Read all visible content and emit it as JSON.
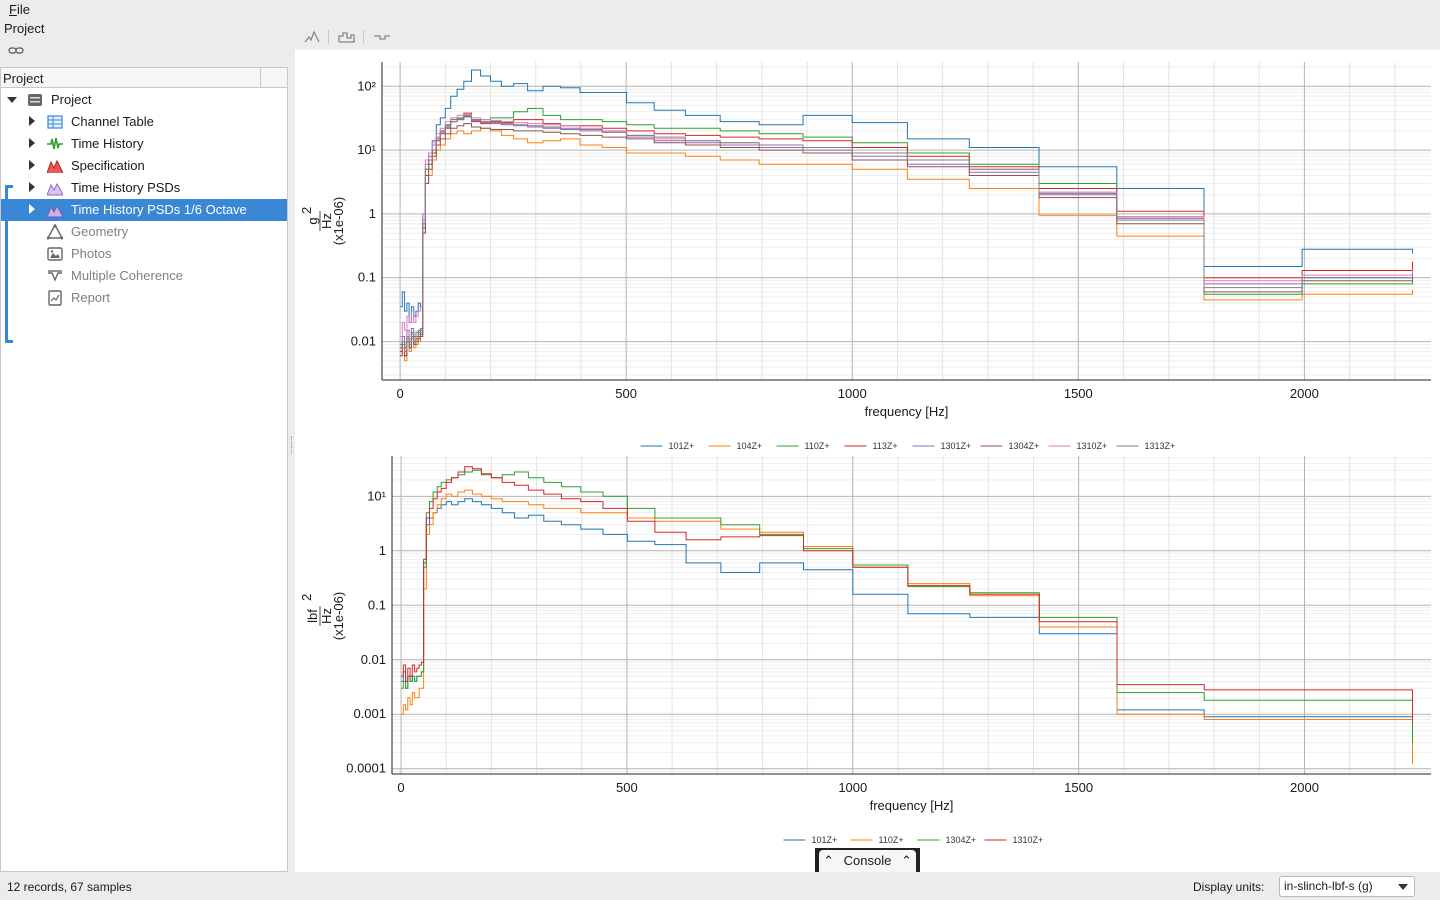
{
  "menubar": {
    "file_label": "File"
  },
  "project_panel": {
    "title": "Project",
    "tree_header": "Project",
    "items": [
      {
        "label": "Project",
        "icon": "database-icon",
        "expanded": true
      },
      {
        "label": "Channel Table",
        "icon": "table-icon"
      },
      {
        "label": "Time History",
        "icon": "waveform-icon"
      },
      {
        "label": "Specification",
        "icon": "spec-icon"
      },
      {
        "label": "Time History PSDs",
        "icon": "psd-icon"
      },
      {
        "label": "Time History PSDs 1/6 Octave",
        "icon": "psd-icon",
        "selected": true
      },
      {
        "label": "Geometry",
        "icon": "triangle-icon",
        "disabled": true
      },
      {
        "label": "Photos",
        "icon": "photo-icon",
        "disabled": true
      },
      {
        "label": "Multiple Coherence",
        "icon": "coherence-icon",
        "disabled": true
      },
      {
        "label": "Report",
        "icon": "report-icon",
        "disabled": true
      }
    ]
  },
  "toolbar": {
    "icons": [
      "peak-icon",
      "histogram-icon",
      "step-icon"
    ]
  },
  "colors": {
    "accent": "#3a87d6",
    "series": [
      "#1f77b4",
      "#ff7f0e",
      "#2ca02c",
      "#d62728",
      "#9467bd",
      "#8c564b",
      "#e377c2",
      "#7f7f7f"
    ]
  },
  "chart_data": [
    {
      "type": "line",
      "step": true,
      "xlabel": "frequency [Hz]",
      "ylabel_num": "g",
      "ylabel_sup": "2",
      "ylabel_den": "Hz",
      "ylabel_scale": "(x1e-06)",
      "yscale": "log",
      "xlim": [
        -40,
        2280
      ],
      "ylim": [
        0.0025,
        240
      ],
      "xticks": [
        0,
        500,
        1000,
        1500,
        2000
      ],
      "xtick_labels": [
        "0",
        "500",
        "1000",
        "1500",
        "2000"
      ],
      "yticks": [
        0.01,
        0.1,
        1,
        10,
        100
      ],
      "ytick_labels": [
        "0.01",
        "0.1",
        "1",
        "10¹",
        "10²"
      ],
      "grid": true,
      "legend_position": "bottom",
      "bin_edges": [
        0,
        5,
        10,
        15,
        20,
        25,
        30,
        35,
        40,
        45,
        50,
        56,
        63,
        71,
        80,
        89,
        100,
        112,
        126,
        141,
        158,
        178,
        200,
        224,
        251,
        282,
        316,
        355,
        398,
        447,
        501,
        562,
        631,
        708,
        794,
        891,
        1000,
        1122,
        1259,
        1413,
        1585,
        1778,
        1995,
        2239
      ],
      "series": [
        {
          "name": "101Z+",
          "values": [
            0.035,
            0.06,
            0.03,
            0.04,
            0.02,
            0.035,
            0.025,
            0.03,
            0.04,
            0.035,
            1.0,
            5,
            9,
            14,
            25,
            32,
            45,
            70,
            90,
            120,
            180,
            145,
            120,
            100,
            110,
            85,
            100,
            95,
            80,
            80,
            55,
            42,
            35,
            28,
            25,
            35,
            27,
            15,
            11,
            5.5,
            2.5,
            0.15,
            0.28,
            0.24
          ]
        },
        {
          "name": "104Z+",
          "values": [
            0.006,
            0.008,
            0.005,
            0.01,
            0.007,
            0.012,
            0.008,
            0.009,
            0.01,
            0.012,
            0.5,
            3,
            4,
            7,
            10,
            12,
            15,
            18,
            20,
            18,
            20,
            22,
            20,
            17,
            15,
            13,
            14,
            15,
            12,
            11,
            9,
            9,
            8,
            7,
            6,
            6,
            5,
            3.5,
            2.5,
            0.95,
            0.45,
            0.045,
            0.055,
            0.065
          ]
        },
        {
          "name": "110Z+",
          "values": [
            0.008,
            0.01,
            0.007,
            0.012,
            0.009,
            0.014,
            0.01,
            0.012,
            0.014,
            0.015,
            0.7,
            5,
            7,
            10,
            15,
            20,
            25,
            30,
            32,
            35,
            30,
            30,
            32,
            32,
            40,
            45,
            35,
            30,
            30,
            28,
            25,
            22,
            22,
            20,
            18,
            16,
            13,
            9,
            6,
            3,
            0.9,
            0.055,
            0.08,
            0.1
          ]
        },
        {
          "name": "113Z+",
          "values": [
            0.007,
            0.009,
            0.006,
            0.011,
            0.008,
            0.012,
            0.009,
            0.011,
            0.012,
            0.013,
            0.6,
            4,
            6,
            9,
            14,
            18,
            22,
            28,
            30,
            38,
            28,
            26,
            28,
            27,
            30,
            30,
            26,
            24,
            24,
            22,
            20,
            18,
            17,
            16,
            15,
            14,
            11,
            8,
            5.5,
            2.5,
            1.1,
            0.1,
            0.13,
            0.18
          ]
        },
        {
          "name": "1301Z+",
          "values": [
            0.009,
            0.012,
            0.008,
            0.015,
            0.01,
            0.016,
            0.012,
            0.014,
            0.015,
            0.016,
            0.8,
            6,
            8,
            12,
            16,
            20,
            24,
            28,
            30,
            33,
            29,
            27,
            26,
            25,
            24,
            23,
            22,
            21,
            20,
            19,
            16,
            14,
            13,
            12,
            11,
            10,
            8,
            6,
            4.5,
            2,
            0.85,
            0.08,
            0.1,
            0.12
          ]
        },
        {
          "name": "1304Z+",
          "values": [
            0.006,
            0.009,
            0.006,
            0.01,
            0.008,
            0.011,
            0.009,
            0.01,
            0.011,
            0.012,
            0.5,
            3,
            5,
            8,
            12,
            15,
            18,
            22,
            24,
            26,
            23,
            22,
            21,
            21,
            20,
            20,
            19,
            18,
            17,
            16,
            15,
            13,
            12,
            11,
            10,
            9,
            7,
            5.5,
            4,
            1.8,
            0.7,
            0.06,
            0.09,
            0.11
          ]
        },
        {
          "name": "1310Z+",
          "values": [
            0.012,
            0.02,
            0.015,
            0.025,
            0.02,
            0.03,
            0.02,
            0.025,
            0.03,
            0.035,
            1.0,
            7,
            9,
            13,
            18,
            22,
            28,
            32,
            35,
            36,
            32,
            30,
            29,
            28,
            27,
            26,
            25,
            24,
            22,
            20,
            17,
            15,
            14,
            13,
            12,
            11,
            9,
            7,
            5,
            2.2,
            0.9,
            0.09,
            0.11,
            0.13
          ]
        },
        {
          "name": "1313Z+",
          "values": [
            0.008,
            0.01,
            0.007,
            0.012,
            0.009,
            0.013,
            0.01,
            0.012,
            0.013,
            0.014,
            0.7,
            5,
            7,
            10,
            15,
            19,
            23,
            28,
            31,
            34,
            30,
            28,
            27,
            26,
            25,
            24,
            23,
            22,
            21,
            19,
            17,
            16,
            14,
            13,
            12,
            11,
            9,
            7,
            5,
            2.1,
            0.8,
            0.07,
            0.1,
            0.12
          ]
        }
      ]
    },
    {
      "type": "line",
      "step": true,
      "xlabel": "frequency [Hz]",
      "ylabel_num": "lbf",
      "ylabel_sup": "2",
      "ylabel_den": "Hz",
      "ylabel_scale": "(x1e-06)",
      "yscale": "log",
      "xlim": [
        -20,
        2280
      ],
      "ylim": [
        8e-05,
        55
      ],
      "xticks": [
        0,
        500,
        1000,
        1500,
        2000
      ],
      "xtick_labels": [
        "0",
        "500",
        "1000",
        "1500",
        "2000"
      ],
      "yticks": [
        0.0001,
        0.001,
        0.01,
        0.1,
        1,
        10
      ],
      "ytick_labels": [
        "0.0001",
        "0.001",
        "0.01",
        "0.1",
        "1",
        "10¹"
      ],
      "grid": true,
      "legend_position": "bottom",
      "bin_edges": [
        0,
        5,
        10,
        15,
        20,
        25,
        30,
        35,
        40,
        45,
        50,
        56,
        63,
        71,
        80,
        89,
        100,
        112,
        126,
        141,
        158,
        178,
        200,
        224,
        251,
        282,
        316,
        355,
        398,
        447,
        501,
        562,
        631,
        708,
        794,
        891,
        1000,
        1122,
        1259,
        1413,
        1585,
        1778,
        1995,
        2239
      ],
      "series": [
        {
          "name": "101Z+",
          "values": [
            0.004,
            0.006,
            0.003,
            0.005,
            0.004,
            0.005,
            0.004,
            0.005,
            0.005,
            0.006,
            0.6,
            3,
            4,
            5,
            6,
            7,
            8,
            7,
            8,
            9,
            8,
            7,
            6,
            5,
            4,
            4.5,
            3.5,
            3,
            2.5,
            2,
            1.5,
            1.3,
            0.6,
            0.4,
            0.6,
            0.45,
            0.16,
            0.07,
            0.06,
            0.03,
            0.0012,
            0.0009,
            0.0009,
            0.00015
          ]
        },
        {
          "name": "110Z+",
          "values": [
            0.001,
            0.0015,
            0.0012,
            0.002,
            0.0015,
            0.0025,
            0.002,
            0.002,
            0.003,
            0.003,
            0.2,
            2,
            3,
            5,
            7,
            9,
            11,
            10,
            12,
            13,
            11,
            10,
            9,
            8,
            8,
            7,
            6,
            6,
            5,
            5,
            4,
            3.5,
            3.5,
            2.5,
            2.2,
            1.2,
            0.5,
            0.25,
            0.15,
            0.04,
            0.001,
            0.0008,
            0.0008,
            0.00012
          ]
        },
        {
          "name": "1304Z+",
          "values": [
            0.003,
            0.004,
            0.003,
            0.005,
            0.004,
            0.005,
            0.004,
            0.005,
            0.005,
            0.006,
            0.5,
            5,
            8,
            12,
            15,
            18,
            20,
            22,
            25,
            28,
            30,
            25,
            22,
            25,
            28,
            22,
            18,
            15,
            12,
            10,
            6,
            4,
            4,
            3,
            2,
            1.1,
            0.55,
            0.22,
            0.17,
            0.06,
            0.0025,
            0.0018,
            0.0018,
            0.0003
          ]
        },
        {
          "name": "1310Z+",
          "values": [
            0.005,
            0.008,
            0.004,
            0.007,
            0.005,
            0.008,
            0.006,
            0.007,
            0.008,
            0.009,
            0.7,
            4,
            6,
            9,
            12,
            14,
            18,
            22,
            28,
            35,
            32,
            26,
            22,
            18,
            16,
            13,
            11,
            9,
            8,
            6,
            3.5,
            2.2,
            1.6,
            1.8,
            1.9,
            1.0,
            0.5,
            0.23,
            0.16,
            0.05,
            0.0035,
            0.0028,
            0.0028,
            0.0007
          ]
        }
      ]
    }
  ],
  "console": {
    "label": "Console"
  },
  "statusbar": {
    "records_text": "12 records, 67 samples",
    "units_label": "Display units:",
    "units_value": "in-slinch-lbf-s (g)"
  }
}
